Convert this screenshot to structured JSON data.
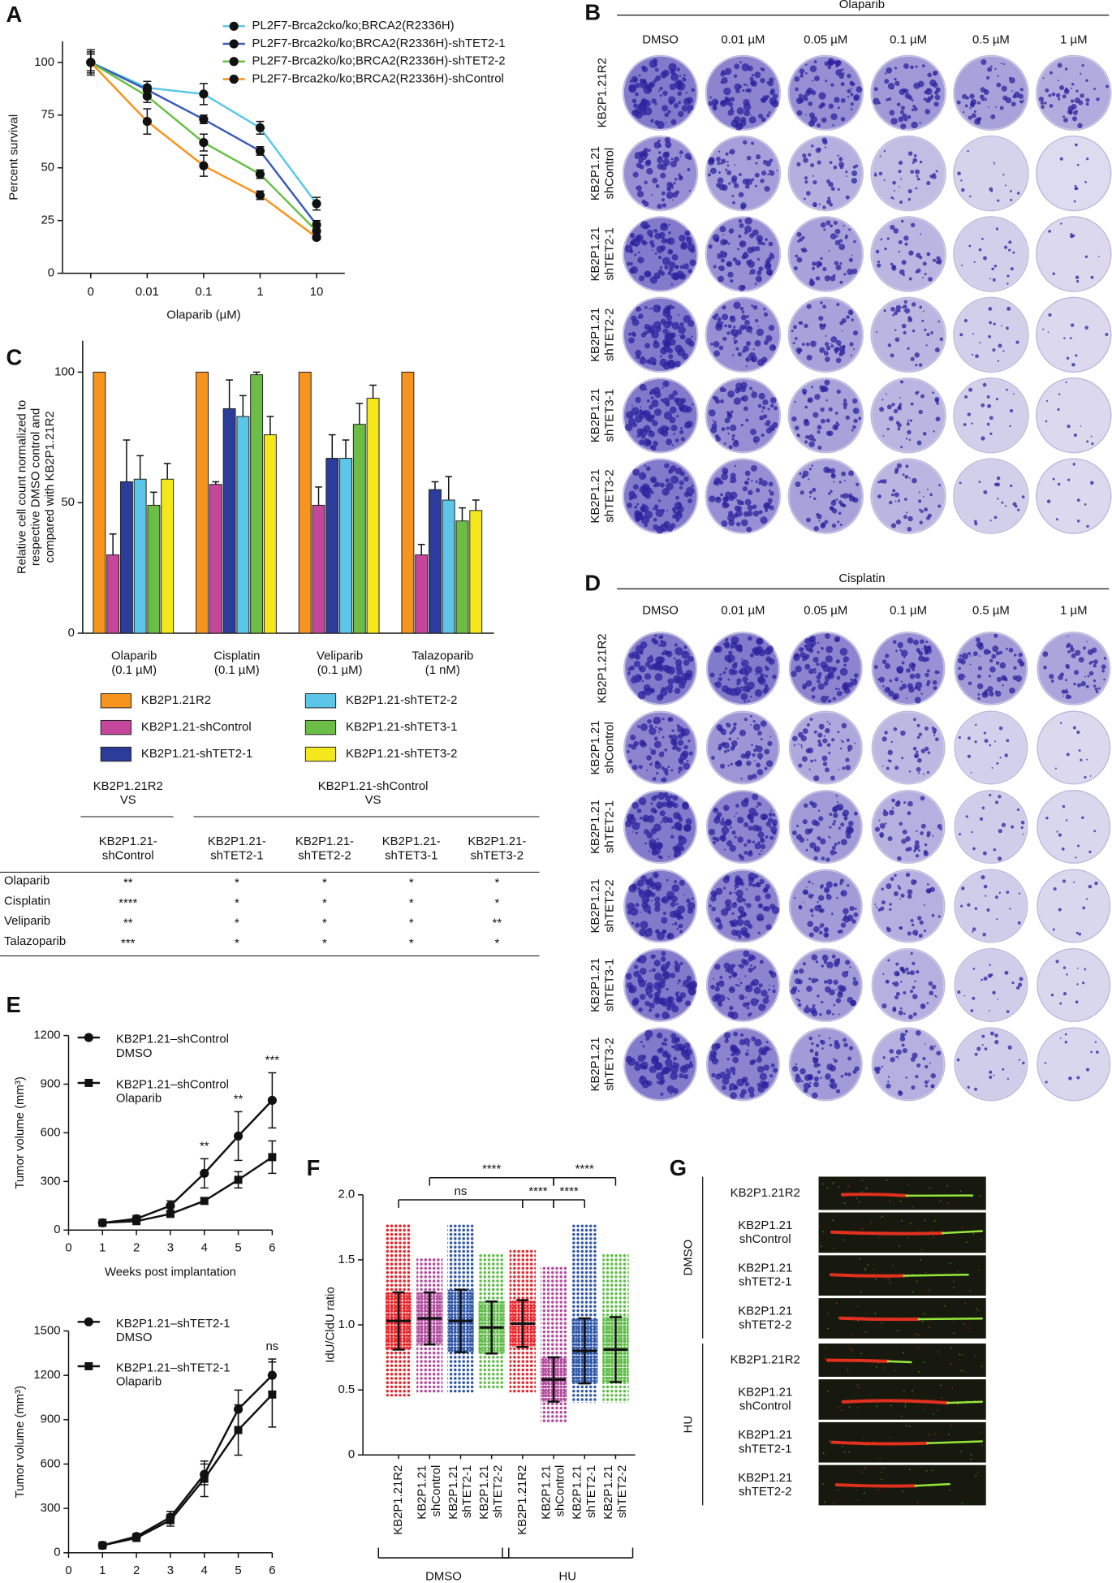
{
  "panel_labels": [
    "A",
    "B",
    "C",
    "D",
    "E",
    "F",
    "G"
  ],
  "chart_data": [
    {
      "type": "line",
      "ylabel": "Percent survival",
      "xlabel": "Olaparib (µM)",
      "categories": [
        "0",
        "0.01",
        "0.1",
        "1",
        "10"
      ],
      "ylim": [
        0,
        110
      ],
      "yticks": [
        0,
        25,
        50,
        75,
        100
      ],
      "marker_color": "#111111",
      "series": [
        {
          "name": "PL2F7-Brca2cko/ko;BRCA2(R2336H)",
          "color": "#5bc8e6",
          "marker": "circle",
          "values": [
            100,
            88,
            85,
            69,
            33
          ],
          "errors": [
            5,
            3,
            5,
            3,
            3
          ]
        },
        {
          "name": "PL2F7-Brca2ko/ko;BRCA2(R2336H)-shTET2-1",
          "color": "#3a5bb8",
          "marker": "circle",
          "values": [
            100,
            87,
            73,
            58,
            23
          ],
          "errors": [
            4,
            2,
            2,
            2,
            2
          ]
        },
        {
          "name": "PL2F7-Brca2ko/ko;BRCA2(R2336H)-shTET2-2",
          "color": "#6abf45",
          "marker": "circle",
          "values": [
            100,
            84,
            62,
            47,
            20
          ],
          "errors": [
            4,
            3,
            4,
            2,
            2
          ]
        },
        {
          "name": "PL2F7-Brca2ko/ko;BRCA2(R2336H)-shControl",
          "color": "#f7941d",
          "marker": "circle",
          "values": [
            100,
            72,
            51,
            37,
            17
          ],
          "errors": [
            6,
            6,
            5,
            2,
            1
          ]
        }
      ]
    },
    {
      "type": "bar",
      "ylabel": "Relative cell count normalized to\nrespective DMSO control and\ncompared with KB2P1.21R2",
      "categories": [
        "Olaparib\n(0.1 µM)",
        "Cisplatin\n(0.1 µM)",
        "Veliparib\n(0.1 µM)",
        "Talazoparib\n(1 nM)"
      ],
      "ylim": [
        0,
        112
      ],
      "yticks": [
        0,
        50,
        100
      ],
      "series": [
        {
          "name": "KB2P1.21R2",
          "color": "#f7941d",
          "values": [
            100,
            100,
            100,
            100
          ]
        },
        {
          "name": "KB2P1.21-shControl",
          "color": "#c5479c",
          "values": [
            30,
            57,
            49,
            30
          ],
          "errors": [
            8,
            1,
            7,
            4
          ]
        },
        {
          "name": "KB2P1.21-shTET2-1",
          "color": "#2b3c9a",
          "values": [
            58,
            86,
            67,
            55
          ],
          "errors": [
            16,
            11,
            9,
            3
          ]
        },
        {
          "name": "KB2P1.21-shTET2-2",
          "color": "#5bc6e8",
          "values": [
            59,
            83,
            67,
            51
          ],
          "errors": [
            9,
            8,
            7,
            9
          ]
        },
        {
          "name": "KB2P1.21-shTET3-1",
          "color": "#6cbd45",
          "values": [
            49,
            99,
            80,
            43
          ],
          "errors": [
            5,
            1,
            8,
            5
          ]
        },
        {
          "name": "KB2P1.21-shTET3-2",
          "color": "#f4e81c",
          "values": [
            59,
            76,
            90,
            47
          ],
          "errors": [
            6,
            7,
            5,
            4
          ]
        }
      ]
    },
    {
      "type": "line",
      "ylabel": "Tumor volume (mm³)",
      "xlabel": "Weeks post implantation",
      "x": [
        1,
        2,
        3,
        4,
        5,
        6
      ],
      "xlim": [
        0,
        6
      ],
      "xticks": [
        0,
        1,
        2,
        3,
        4,
        5,
        6
      ],
      "ylim": [
        0,
        1200
      ],
      "yticks": [
        0,
        300,
        600,
        900,
        1200
      ],
      "marker_color": "#111111",
      "series": [
        {
          "name": "KB2P1.21–shControl\nDMSO",
          "color": "#111111",
          "marker": "circle",
          "values": [
            45,
            70,
            150,
            350,
            580,
            800
          ],
          "errors": [
            5,
            20,
            30,
            90,
            150,
            170
          ]
        },
        {
          "name": "KB2P1.21–shControl\nOlaparib",
          "color": "#111111",
          "marker": "square",
          "values": [
            45,
            55,
            100,
            180,
            310,
            450
          ],
          "errors": [
            5,
            10,
            15,
            20,
            50,
            100
          ]
        }
      ],
      "annotations": [
        {
          "x": 4,
          "text": "**"
        },
        {
          "x": 5,
          "text": "**"
        },
        {
          "x": 6,
          "text": "***"
        }
      ]
    },
    {
      "type": "line",
      "ylabel": "Tumor volume (mm³)",
      "xlabel": "Weeks post implantation",
      "x": [
        1,
        2,
        3,
        4,
        5,
        6
      ],
      "xlim": [
        0,
        6
      ],
      "xticks": [
        0,
        1,
        2,
        3,
        4,
        5,
        6
      ],
      "ylim": [
        0,
        1500
      ],
      "yticks": [
        0,
        300,
        600,
        900,
        1200,
        1500
      ],
      "marker_color": "#111111",
      "series": [
        {
          "name": "KB2P1.21–shTET2-1\nDMSO",
          "color": "#111111",
          "marker": "circle",
          "values": [
            50,
            110,
            240,
            530,
            970,
            1200
          ],
          "errors": [
            10,
            20,
            40,
            70,
            130,
            110
          ]
        },
        {
          "name": "KB2P1.21–shTET2-1\nOlaparib",
          "color": "#111111",
          "marker": "square",
          "values": [
            50,
            100,
            220,
            500,
            830,
            1070
          ],
          "errors": [
            10,
            20,
            40,
            120,
            170,
            220
          ]
        }
      ],
      "annotations": [
        {
          "x": 6,
          "text": "ns"
        }
      ]
    },
    {
      "type": "strip",
      "ylabel": {
        "parts": [
          "IdU",
          "/",
          "CldU",
          " ratio"
        ],
        "colors": [
          "#3cae3c",
          "#111111",
          "#e8232a",
          "#111111"
        ]
      },
      "categories": [
        "KB2P1.21R2",
        "KB2P1.21\nshControl",
        "KB2P1.21\nshTET2-1",
        "KB2P1.21\nshTET2-2",
        "KB2P1.21R2",
        "KB2P1.21\nshControl",
        "KB2P1.21\nshTET2-1",
        "KB2P1.21\nshTET2-2"
      ],
      "colors": [
        "#e8232a",
        "#b04a9c",
        "#2c55a6",
        "#5dbb46",
        "#e8232a",
        "#b04a9c",
        "#2c55a6",
        "#5dbb46"
      ],
      "means": [
        1.03,
        1.05,
        1.03,
        0.98,
        1.01,
        0.58,
        0.8,
        0.81
      ],
      "sds": [
        0.22,
        0.2,
        0.24,
        0.2,
        0.18,
        0.17,
        0.25,
        0.25
      ],
      "ranges": [
        [
          0.45,
          1.78
        ],
        [
          0.48,
          1.52
        ],
        [
          0.48,
          1.77
        ],
        [
          0.5,
          1.55
        ],
        [
          0.48,
          1.58
        ],
        [
          0.25,
          1.45
        ],
        [
          0.4,
          1.77
        ],
        [
          0.4,
          1.55
        ]
      ],
      "ylim": [
        0,
        2
      ],
      "yticks": [
        0,
        0.5,
        {
          "value": 1,
          "label": "1.0"
        },
        1.5,
        {
          "value": 2,
          "label": "2.0"
        }
      ],
      "groups": [
        {
          "label": "DMSO",
          "from": 0,
          "to": 3
        },
        {
          "label": "HU",
          "from": 4,
          "to": 7
        }
      ],
      "comparisons": [
        {
          "from": 0,
          "to": 4,
          "label": "ns"
        },
        {
          "from": 1,
          "to": 5,
          "label": "****"
        },
        {
          "from": 4,
          "to": 5,
          "label": "****"
        },
        {
          "from": 5,
          "to": 6,
          "label": "****"
        },
        {
          "from": 5,
          "to": 7,
          "label": "****"
        }
      ]
    }
  ],
  "colony_assays": [
    {
      "title": "Olaparib",
      "columns": [
        "DMSO",
        "0.01 µM",
        "0.05 µM",
        "0.1 µM",
        "0.5 µM",
        "1 µM"
      ],
      "rows": [
        "KB2P1.21R2",
        "KB2P1.21\nshControl",
        "KB2P1.21\nshTET2-1",
        "KB2P1.21\nshTET2-2",
        "KB2P1.21\nshTET3-1",
        "KB2P1.21\nshTET3-2"
      ]
    },
    {
      "title": "Cisplatin",
      "columns": [
        "DMSO",
        "0.01 µM",
        "0.05 µM",
        "0.1 µM",
        "0.5 µM",
        "1 µM"
      ],
      "rows": [
        "KB2P1.21R2",
        "KB2P1.21\nshControl",
        "KB2P1.21\nshTET2-1",
        "KB2P1.21\nshTET2-2",
        "KB2P1.21\nshTET3-1",
        "KB2P1.21\nshTET3-2"
      ]
    }
  ],
  "stats_table": {
    "header_groups": [
      "KB2P1.21R2\nVS",
      "KB2P1.21-shControl\nVS"
    ],
    "columns": [
      "KB2P1.21-\nshControl",
      "KB2P1.21-\nshTET2-1",
      "KB2P1.21-\nshTET2-2",
      "KB2P1.21-\nshTET3-1",
      "KB2P1.21-\nshTET3-2"
    ],
    "rows": [
      [
        "Olaparib",
        "**",
        "*",
        "*",
        "*",
        "*"
      ],
      [
        "Cisplatin",
        "****",
        "*",
        "*",
        "*",
        "*"
      ],
      [
        "Veliparib",
        "**",
        "*",
        "*",
        "*",
        "**"
      ],
      [
        "Talazoparib",
        "***",
        "*",
        "*",
        "*",
        "*"
      ]
    ]
  },
  "fiber_images": {
    "groups": [
      {
        "label": "DMSO",
        "rows": [
          "KB2P1.21R2",
          "KB2P1.21\nshControl",
          "KB2P1.21\nshTET2-1",
          "KB2P1.21\nshTET2-2"
        ]
      },
      {
        "label": "HU",
        "rows": [
          "KB2P1.21R2",
          "KB2P1.21\nshControl",
          "KB2P1.21\nshTET2-1",
          "KB2P1.21\nshTET2-2"
        ]
      }
    ]
  }
}
